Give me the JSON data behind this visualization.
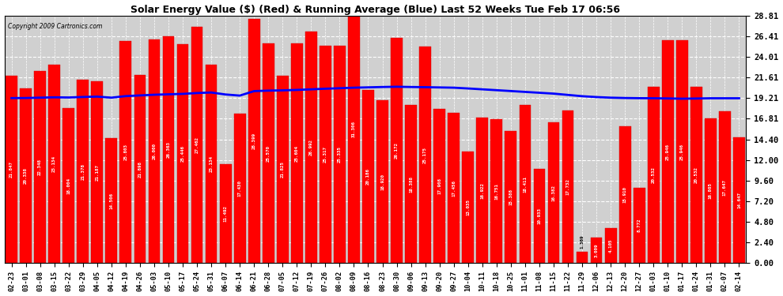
{
  "title": "Solar Energy Value ($) (Red) & Running Average (Blue) Last 52 Weeks Tue Feb 17 06:56",
  "copyright": "Copyright 2009 Cartronics.com",
  "bar_color": "#FF0000",
  "avg_line_color": "#0000FF",
  "background_color": "#FFFFFF",
  "plot_bg_color": "#D0D0D0",
  "grid_color": "#FFFFFF",
  "ytick_values": [
    0.0,
    2.4,
    4.8,
    7.2,
    9.6,
    12.0,
    14.4,
    16.81,
    19.21,
    21.61,
    24.01,
    26.41,
    28.81
  ],
  "ymax": 28.81,
  "dates": [
    "02-23",
    "03-01",
    "03-08",
    "03-15",
    "03-22",
    "03-29",
    "04-05",
    "04-12",
    "04-19",
    "04-26",
    "05-03",
    "05-10",
    "05-17",
    "05-24",
    "05-31",
    "06-07",
    "06-14",
    "06-21",
    "06-28",
    "07-05",
    "07-12",
    "07-19",
    "07-26",
    "08-02",
    "08-09",
    "08-16",
    "08-23",
    "08-30",
    "09-06",
    "09-13",
    "09-20",
    "09-27",
    "10-04",
    "10-11",
    "10-18",
    "10-25",
    "11-01",
    "11-08",
    "11-15",
    "11-22",
    "11-29",
    "12-06",
    "12-13",
    "12-20",
    "12-27",
    "01-03",
    "01-10",
    "01-17",
    "01-24",
    "01-31",
    "02-07",
    "02-14"
  ],
  "bar_values": [
    21.847,
    20.338,
    22.348,
    23.134,
    18.004,
    21.378,
    21.187,
    14.506,
    25.803,
    21.898,
    26.0,
    26.363,
    25.446,
    27.462,
    23.134,
    11.492,
    17.43,
    28.399,
    25.57,
    21.825,
    25.604,
    26.992,
    25.317,
    25.335,
    31.306,
    20.186,
    18.92,
    26.172,
    18.388,
    25.175,
    17.908,
    17.456,
    13.035,
    16.922,
    16.751,
    15.388,
    18.411,
    10.933,
    16.382,
    17.732,
    1.369,
    3.009,
    4.105,
    15.91,
    8.772,
    20.532,
    25.946,
    25.946,
    20.532,
    16.805,
    17.647,
    14.647
  ],
  "avg_values": [
    19.21,
    19.22,
    19.26,
    19.3,
    19.28,
    19.34,
    19.38,
    19.26,
    19.44,
    19.52,
    19.6,
    19.65,
    19.7,
    19.8,
    19.86,
    19.63,
    19.5,
    20.02,
    20.08,
    20.11,
    20.16,
    20.23,
    20.3,
    20.36,
    20.42,
    20.46,
    20.5,
    20.53,
    20.5,
    20.48,
    20.45,
    20.42,
    20.33,
    20.23,
    20.13,
    20.03,
    19.93,
    19.83,
    19.73,
    19.58,
    19.43,
    19.33,
    19.26,
    19.22,
    19.2,
    19.19,
    19.17,
    19.14,
    19.16,
    19.19,
    19.19,
    19.19
  ]
}
